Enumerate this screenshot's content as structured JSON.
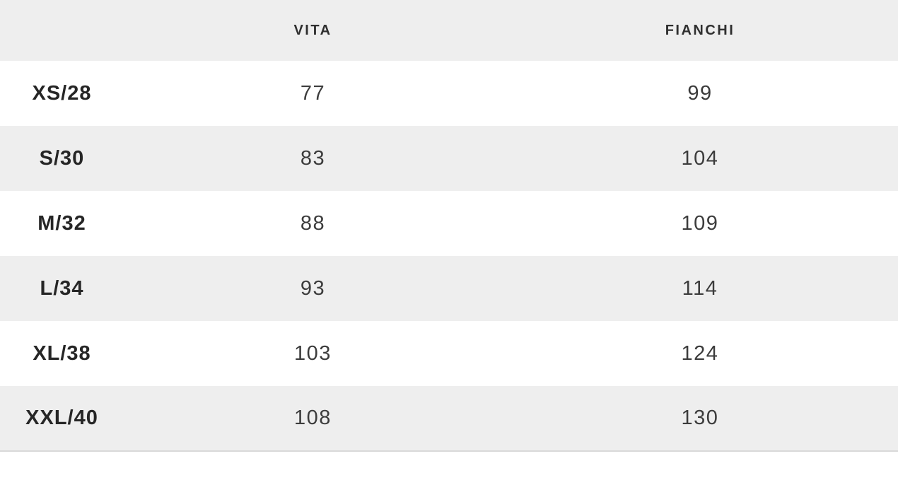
{
  "size_chart": {
    "header": {
      "size_col_label": "",
      "columns": [
        "VITA",
        "FIANCHI"
      ]
    },
    "rows": [
      {
        "size": "XS/28",
        "vita": "77",
        "fianchi": "99"
      },
      {
        "size": "S/30",
        "vita": "83",
        "fianchi": "104"
      },
      {
        "size": "M/32",
        "vita": "88",
        "fianchi": "109"
      },
      {
        "size": "L/34",
        "vita": "93",
        "fianchi": "114"
      },
      {
        "size": "XL/38",
        "vita": "103",
        "fianchi": "124"
      },
      {
        "size": "XXL/40",
        "vita": "108",
        "fianchi": "130"
      }
    ],
    "colors": {
      "header_bg": "#eeeeee",
      "row_alt_bg": "#eeeeee",
      "row_bg": "#ffffff",
      "bottom_border": "#d9d9d9",
      "header_text": "#2f2f2f",
      "size_text": "#262626",
      "value_text": "#3c3c3c"
    }
  },
  "chart_data": {
    "type": "table",
    "title": "",
    "columns": [
      "",
      "VITA",
      "FIANCHI"
    ],
    "rows": [
      [
        "XS/28",
        77,
        99
      ],
      [
        "S/30",
        83,
        104
      ],
      [
        "M/32",
        88,
        109
      ],
      [
        "L/34",
        93,
        114
      ],
      [
        "XL/38",
        103,
        124
      ],
      [
        "XXL/40",
        108,
        130
      ]
    ]
  }
}
